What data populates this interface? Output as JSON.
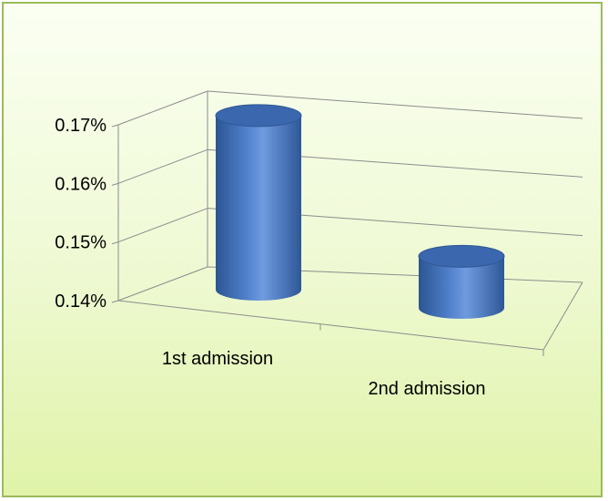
{
  "chart_data": {
    "type": "bar",
    "style": "3d-cylinder",
    "categories": [
      "1st admission",
      "2nd admission"
    ],
    "series": [
      {
        "values": [
          0.1697,
          0.1488
        ]
      }
    ],
    "yticks": [
      "0.17%",
      "0.16%",
      "0.15%",
      "0.14%"
    ],
    "ylim": [
      0.14,
      0.17
    ],
    "grid": true,
    "legend": "none",
    "colors": {
      "bar_side": "#3f6fb5",
      "bar_highlight": "#6f9be0",
      "bar_top": "#3a67ad",
      "grid": "#8c8c8c",
      "background_top": "#fbfff3",
      "background_bottom": "#e0f3a8",
      "frame": "#9bbb59"
    }
  }
}
